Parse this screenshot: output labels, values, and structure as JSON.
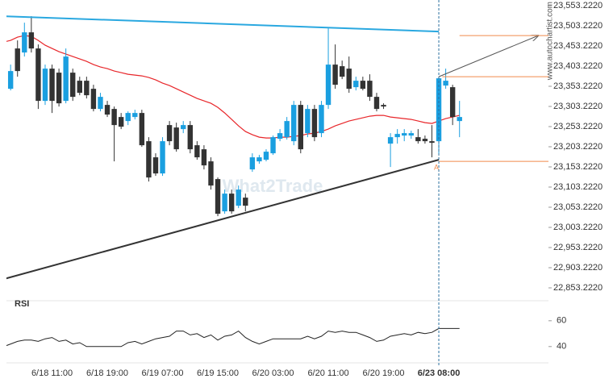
{
  "chart_data": {
    "type": "candlestick",
    "categories": [
      null,
      null,
      null,
      null,
      null,
      null,
      null,
      "6/18 11:00",
      null,
      null,
      null,
      null,
      null,
      null,
      null,
      "6/18 19:00",
      null,
      null,
      null,
      null,
      null,
      null,
      null,
      "6/19 07:00",
      null,
      null,
      null,
      null,
      null,
      null,
      null,
      "6/19 15:00",
      null,
      null,
      null,
      null,
      null,
      null,
      null,
      "6/20 03:00",
      null,
      null,
      null,
      null,
      null,
      null,
      null,
      "6/20 11:00",
      null,
      null,
      null,
      null,
      null,
      null,
      null,
      "6/20 19:00",
      null,
      null,
      null,
      null,
      null,
      null,
      null,
      "6/23 08:00",
      null,
      null,
      null
    ],
    "open": [
      23331,
      23347,
      23447,
      23437,
      23487,
      23447,
      23317,
      23397,
      23387,
      23317,
      23387,
      23367,
      23367,
      23347,
      23297,
      23307,
      23297,
      23277,
      23267,
      23277,
      23287,
      23217,
      23177,
      23137,
      23257,
      23251,
      23247,
      23257,
      23207,
      23197,
      23167,
      23123,
      23043,
      23087,
      23057,
      23077,
      23147,
      23167,
      23171,
      23187,
      23223,
      23227,
      23217,
      23307,
      23237,
      23297,
      23237,
      23307,
      23407,
      23403,
      23397,
      23351,
      23367,
      23367,
      23327,
      23307,
      23211,
      23227,
      23231,
      23231,
      23227,
      23223,
      23217,
      23217,
      23355,
      23351,
      23267
    ],
    "high": [
      23357,
      23407,
      23467,
      23511,
      23527,
      23457,
      23407,
      23407,
      23397,
      23447,
      23397,
      23377,
      23377,
      23357,
      23337,
      23317,
      23303,
      23287,
      23291,
      23295,
      23295,
      23227,
      23187,
      23227,
      23267,
      23263,
      23267,
      23267,
      23217,
      23207,
      23177,
      23127,
      23097,
      23097,
      23107,
      23087,
      23187,
      23183,
      23197,
      23231,
      23247,
      23277,
      23317,
      23317,
      23307,
      23307,
      23317,
      23497,
      23457,
      23417,
      23427,
      23377,
      23377,
      23383,
      23337,
      23311,
      23237,
      23247,
      23247,
      23243,
      23247,
      23231,
      23257,
      23377,
      23397,
      23357,
      23317
    ],
    "low": [
      23327,
      23343,
      23377,
      23427,
      23437,
      23297,
      23307,
      23287,
      23303,
      23311,
      23317,
      23331,
      23323,
      23291,
      23291,
      23277,
      23167,
      23247,
      23257,
      23271,
      23203,
      23117,
      23131,
      23131,
      23207,
      23191,
      23237,
      23187,
      23171,
      23147,
      23097,
      23031,
      23037,
      23037,
      23051,
      23043,
      23141,
      23161,
      23167,
      23183,
      23217,
      23221,
      23207,
      23187,
      23227,
      23217,
      23227,
      23297,
      23347,
      23371,
      23337,
      23343,
      23343,
      23317,
      23291,
      23297,
      23153,
      23211,
      23217,
      23223,
      23211,
      23211,
      23177,
      23187,
      23347,
      23257,
      23227
    ],
    "close": [
      23347,
      23391,
      23391,
      23487,
      23447,
      23317,
      23397,
      23317,
      23311,
      23427,
      23327,
      23337,
      23331,
      23297,
      23327,
      23283,
      23257,
      23253,
      23287,
      23287,
      23207,
      23127,
      23137,
      23217,
      23217,
      23197,
      23257,
      23197,
      23177,
      23157,
      23107,
      23037,
      23087,
      23043,
      23097,
      23057,
      23177,
      23177,
      23191,
      23227,
      23237,
      23267,
      23307,
      23197,
      23297,
      23227,
      23307,
      23407,
      23357,
      23377,
      23347,
      23367,
      23347,
      23327,
      23297,
      23303,
      23227,
      23235,
      23237,
      23237,
      23217,
      23217,
      23213,
      23373,
      23367,
      23277,
      23277
    ],
    "up_color": "#1a9fe0",
    "down_color": "#333333",
    "ylim": [
      22827.222,
      23567.222
    ],
    "yticks": [
      {
        "value": 23553.222,
        "label": "23,553.2220"
      },
      {
        "value": 23503.222,
        "label": "23,503.2220"
      },
      {
        "value": 23453.222,
        "label": "23,453.2220"
      },
      {
        "value": 23403.222,
        "label": "23,403.2220"
      },
      {
        "value": 23353.222,
        "label": "23,353.2220"
      },
      {
        "value": 23303.222,
        "label": "23,303.2220"
      },
      {
        "value": 23253.222,
        "label": "23,253.2220"
      },
      {
        "value": 23203.222,
        "label": "23,203.2220"
      },
      {
        "value": 23153.222,
        "label": "23,153.2220"
      },
      {
        "value": 23103.222,
        "label": "23,103.2220"
      },
      {
        "value": 23053.222,
        "label": "23,053.2220"
      },
      {
        "value": 23003.222,
        "label": "23,003.2220"
      },
      {
        "value": 22953.222,
        "label": "22,953.2220"
      },
      {
        "value": 22903.222,
        "label": "22,903.2220"
      },
      {
        "value": 22853.222,
        "label": "22,853.2220"
      }
    ],
    "ma": {
      "color": "#e8262a",
      "values": [
        23463,
        23467,
        23475,
        23479,
        23477,
        23467,
        23455,
        23447,
        23439,
        23433,
        23427,
        23421,
        23415,
        23407,
        23401,
        23397,
        23391,
        23387,
        23383,
        23381,
        23379,
        23375,
        23369,
        23361,
        23355,
        23347,
        23339,
        23331,
        23323,
        23317,
        23311,
        23301,
        23287,
        23271,
        23255,
        23241,
        23233,
        23227,
        23225,
        23225,
        23227,
        23227,
        23229,
        23231,
        23235,
        23237,
        23241,
        23247,
        23255,
        23261,
        23267,
        23271,
        23275,
        23279,
        23281,
        23281,
        23277,
        23275,
        23273,
        23271,
        23267,
        23263,
        23261,
        23267,
        23273,
        23277,
        23281
      ]
    },
    "trendlines": [
      {
        "color": "#2aa8e0",
        "from": {
          "x": 0,
          "y": 23527
        },
        "to": {
          "x": 63,
          "y": 23489
        }
      },
      {
        "color": "#333333",
        "from": {
          "x": 0,
          "y": 22875
        },
        "to": {
          "x": 63,
          "y": 23171
        }
      },
      {
        "color": "#555555",
        "from": {
          "x": 63,
          "y": 23377
        },
        "to": {
          "x": 77.4,
          "y": 23479
        },
        "arrow": true
      }
    ],
    "levels": [
      {
        "color": "#f08a4b",
        "y": 23479,
        "from": 66
      },
      {
        "color": "#f08a4b",
        "y": 23377,
        "from": 63.5
      },
      {
        "color": "#f08a4b",
        "y": 23167,
        "from": 63
      }
    ],
    "marker": {
      "label": "A",
      "x": 63,
      "y": 23171,
      "color": "#f08a4b"
    },
    "current": {
      "x": 63,
      "color": "#2a6f9f"
    },
    "watermark": "What2Trade",
    "source": "www.autochartist.com",
    "rsi": {
      "title": "RSI",
      "color": "#222222",
      "values": [
        40,
        42,
        44,
        45,
        45,
        44,
        46,
        47,
        44,
        45,
        42,
        43,
        40,
        40,
        40,
        40,
        40,
        40,
        43,
        44,
        42,
        44,
        46,
        47,
        48,
        52,
        52,
        49,
        50,
        47,
        49,
        45,
        48,
        49,
        52,
        47,
        44,
        42,
        44,
        46,
        46,
        46,
        46,
        46,
        48,
        46,
        48,
        52,
        51,
        52,
        51,
        51,
        49,
        47,
        44,
        45,
        48,
        49,
        50,
        49,
        51,
        50,
        51,
        54,
        54,
        54,
        54
      ],
      "ylim": [
        30.5,
        68
      ],
      "yticks": [
        40,
        60
      ]
    }
  }
}
